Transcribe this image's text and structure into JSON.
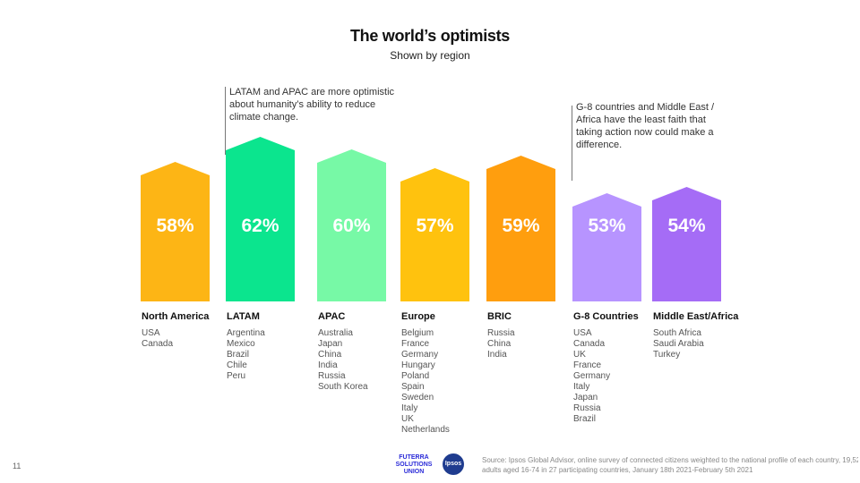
{
  "title": "The world’s optimists",
  "subtitle": "Shown by region",
  "annotations": [
    {
      "text": "LATAM  and APAC are more optimistic about humanity’s ability to reduce climate change."
    },
    {
      "text": "G-8 countries and Middle East / Africa have the least faith that taking action now could make a difference."
    }
  ],
  "chart_data": {
    "type": "bar",
    "title": "The world’s optimists",
    "subtitle": "Shown by region",
    "categories": [
      "North America",
      "LATAM",
      "APAC",
      "Europe",
      "BRIC",
      "G-8 Countries",
      "Middle East/Africa"
    ],
    "values": [
      58,
      62,
      60,
      57,
      59,
      53,
      54
    ],
    "labels": [
      "58%",
      "62%",
      "60%",
      "57%",
      "59%",
      "53%",
      "54%"
    ],
    "unit": "%",
    "colors": [
      "#FDB515",
      "#0BE58E",
      "#77F9A6",
      "#FFC20E",
      "#FF9E0E",
      "#B794FF",
      "#A56CF6"
    ]
  },
  "regions": [
    {
      "name": "North America",
      "countries": [
        "USA",
        "Canada"
      ]
    },
    {
      "name": "LATAM",
      "countries": [
        "Argentina",
        "Mexico",
        "Brazil",
        "Chile",
        "Peru"
      ]
    },
    {
      "name": "APAC",
      "countries": [
        "Australia",
        "Japan",
        "China",
        "India",
        "Russia",
        "South Korea"
      ]
    },
    {
      "name": "Europe",
      "countries": [
        "Belgium",
        "France",
        "Germany",
        "Hungary",
        "Poland",
        "Spain",
        "Sweden",
        "Italy",
        "UK",
        "Netherlands"
      ]
    },
    {
      "name": "BRIC",
      "countries": [
        "Russia",
        "China",
        "India"
      ]
    },
    {
      "name": "G-8 Countries",
      "countries": [
        "USA",
        "Canada",
        "UK",
        "France",
        "Germany",
        "Italy",
        "Japan",
        "Russia",
        "Brazil"
      ]
    },
    {
      "name": "Middle East/Africa",
      "countries": [
        "South Africa",
        "Saudi Arabia",
        "Turkey"
      ]
    }
  ],
  "footer": {
    "page_number": "11",
    "source": "Source: Ipsos Global Advisor, online survey of connected  citizens weighted to the national  profile of each country, 19,52 adults aged 16-74 in 27 participating countries, January 18th 2021-February 5th 2021",
    "source_line1": "Source: Ipsos Global Advisor, online survey of connected  citizens weighted to the national  profile of each country, 19,52",
    "source_line2": "adults aged 16-74 in 27 participating countries, January 18th 2021-February 5th 2021",
    "logo_futerra": "FUTERRA SOLUTIONS UNION",
    "logo_ipsos": "Ipsos"
  }
}
